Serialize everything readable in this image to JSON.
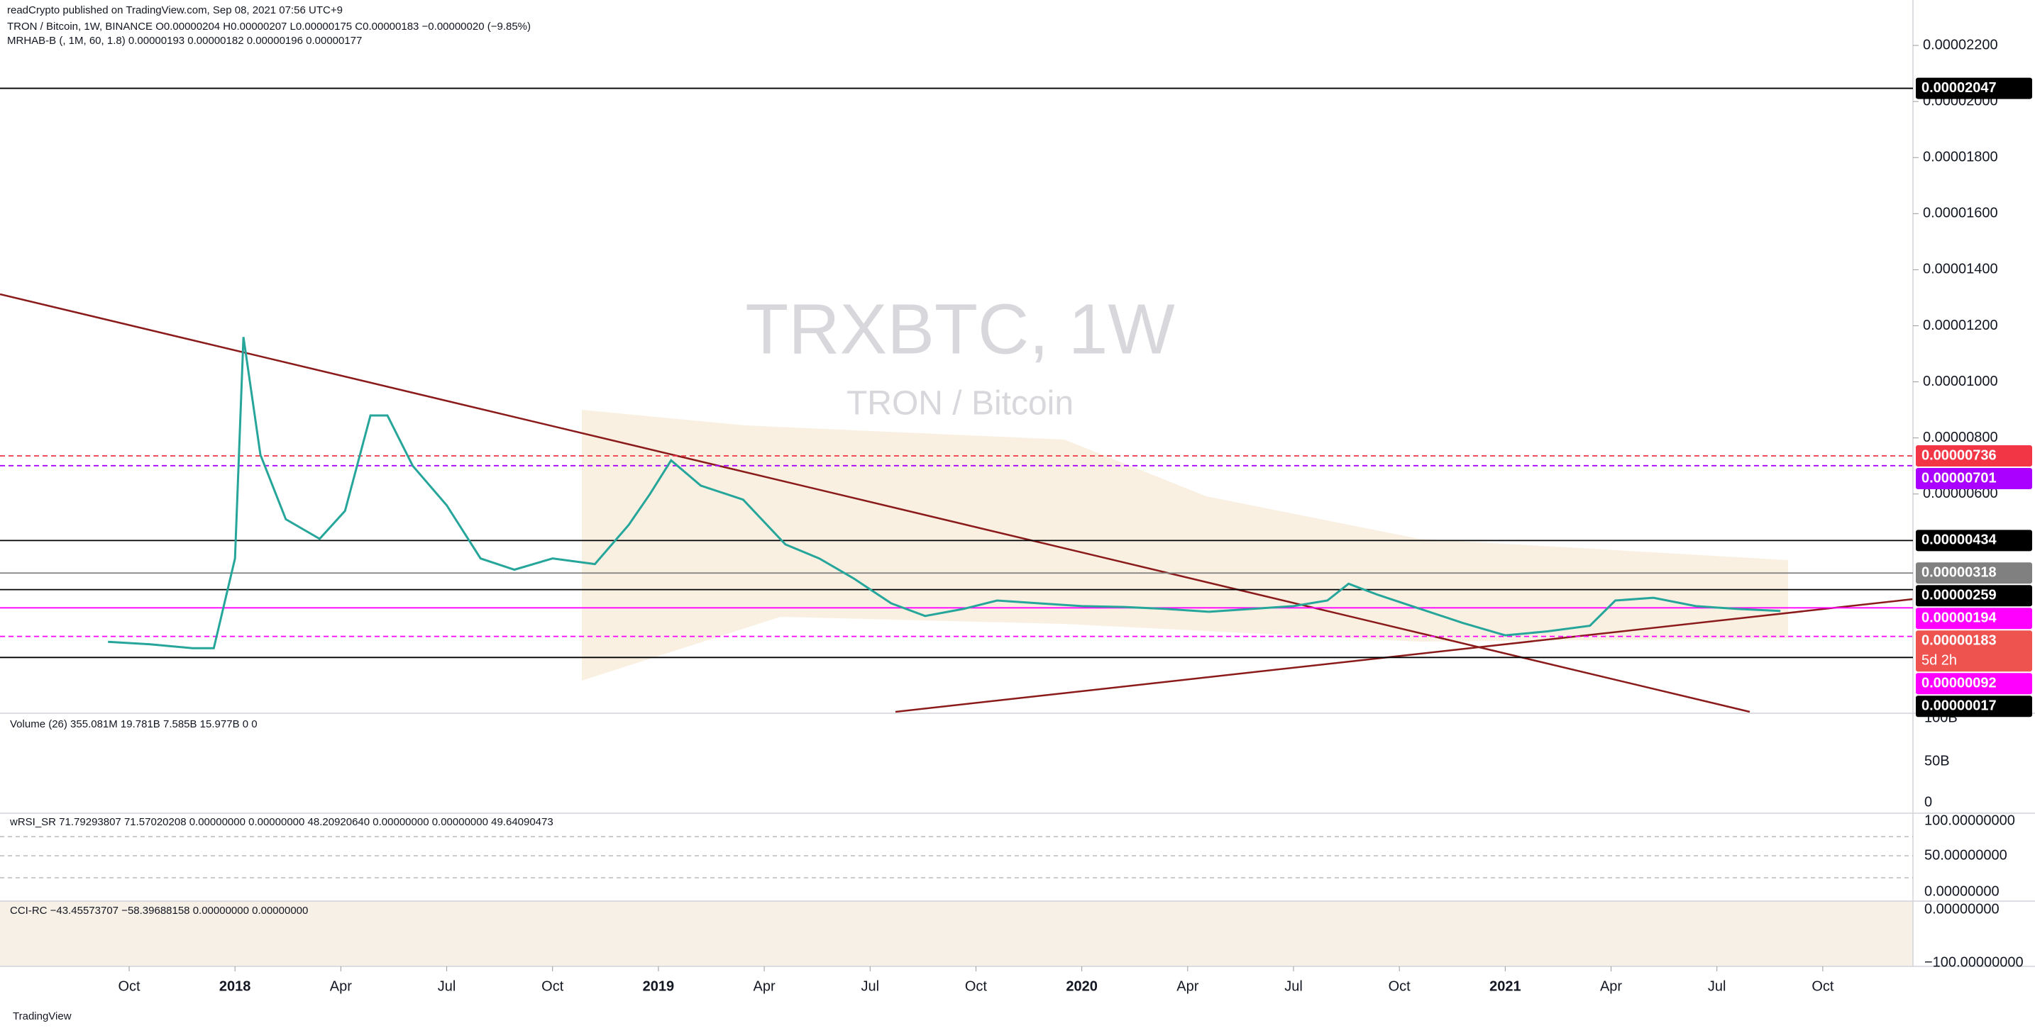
{
  "header": {
    "publisher": "readCrypto published on TradingView.com, Sep 08, 2021 07:56 UTC+9",
    "legend": "TRON / Bitcoin, 1W, BINANCE  O0.00000204  H0.00000207  L0.00000175  C0.00000183  −0.00000020 (−9.85%)",
    "indicator": "MRHAB-B (, 1M, 60, 1.8)  0.00000193  0.00000182  0.00000196  0.00000177",
    "watermark_symbol": "TRXBTC, 1W",
    "watermark_name": "TRON / Bitcoin"
  },
  "chart_data": {
    "type": "line",
    "x": [
      2017.7,
      2017.8,
      2017.9,
      2017.95,
      2018.0,
      2018.02,
      2018.06,
      2018.12,
      2018.2,
      2018.26,
      2018.32,
      2018.36,
      2018.42,
      2018.5,
      2018.58,
      2018.66,
      2018.75,
      2018.85,
      2018.93,
      2018.98,
      2019.03,
      2019.1,
      2019.2,
      2019.3,
      2019.38,
      2019.46,
      2019.55,
      2019.63,
      2019.72,
      2019.8,
      2019.9,
      2020.0,
      2020.1,
      2020.2,
      2020.3,
      2020.4,
      2020.5,
      2020.58,
      2020.63,
      2020.7,
      2020.8,
      2020.9,
      2021.0,
      2021.1,
      2021.2,
      2021.26,
      2021.35,
      2021.45,
      2021.55,
      2021.65
    ],
    "series": [
      {
        "name": "TRXBTC",
        "color": "#26a69a",
        "values": [
          7.3e-07,
          6.4e-07,
          5e-07,
          5e-07,
          3.7e-06,
          1.16e-05,
          7.4e-06,
          5.1e-06,
          4.4e-06,
          5.4e-06,
          8.8e-06,
          8.8e-06,
          7e-06,
          5.6e-06,
          3.7e-06,
          3.3e-06,
          3.7e-06,
          3.5e-06,
          4.9e-06,
          6e-06,
          7.2e-06,
          6.3e-06,
          5.8e-06,
          4.2e-06,
          3.7e-06,
          3e-06,
          2.1e-06,
          1.65e-06,
          1.9e-06,
          2.2e-06,
          2.1e-06,
          2e-06,
          1.97e-06,
          1.9e-06,
          1.8e-06,
          1.9e-06,
          2e-06,
          2.2e-06,
          2.8e-06,
          2.4e-06,
          1.9e-06,
          1.4e-06,
          9.6e-07,
          1.1e-06,
          1.3e-06,
          2.2e-06,
          2.3e-06,
          2e-06,
          1.9e-06,
          1.83e-06
        ]
      }
    ],
    "xlim": [
      2017.445,
      2021.963
    ],
    "xticks": [
      {
        "value": 2017.75,
        "label": "Oct"
      },
      2018,
      {
        "value": 2018.25,
        "label": "Apr"
      },
      {
        "value": 2018.5,
        "label": "Jul"
      },
      {
        "value": 2018.75,
        "label": "Oct"
      },
      2019,
      {
        "value": 2019.25,
        "label": "Apr"
      },
      {
        "value": 2019.5,
        "label": "Jul"
      },
      {
        "value": 2019.75,
        "label": "Oct"
      },
      2020,
      {
        "value": 2020.25,
        "label": "Apr"
      },
      {
        "value": 2020.5,
        "label": "Jul"
      },
      {
        "value": 2020.75,
        "label": "Oct"
      },
      2021,
      {
        "value": 2021.25,
        "label": "Apr"
      },
      {
        "value": 2021.5,
        "label": "Jul"
      },
      {
        "value": 2021.75,
        "label": "Oct"
      }
    ],
    "ylim": [
      -1.82e-06,
      2.362e-05
    ],
    "yticks": [
      {
        "value": 2.2e-05,
        "label": "0.00002200"
      },
      {
        "value": 2e-05,
        "label": "0.00002000"
      },
      {
        "value": 1.8e-05,
        "label": "0.00001800"
      },
      {
        "value": 1.6e-05,
        "label": "0.00001600"
      },
      {
        "value": 1.4e-05,
        "label": "0.00001400"
      },
      {
        "value": 1.2e-05,
        "label": "0.00001200"
      },
      {
        "value": 1e-05,
        "label": "0.00001000"
      },
      {
        "value": 8e-06,
        "label": "0.00000800"
      },
      {
        "value": 6e-06,
        "label": "0.00000600"
      }
    ],
    "levels": [
      {
        "value": 2.047e-05,
        "label": "0.00002047",
        "color": "#000000",
        "line": "solid"
      },
      {
        "value": 7.36e-06,
        "label": "0.00000736",
        "color": "#f23645",
        "line": "dashed"
      },
      {
        "value": 7.01e-06,
        "label": "0.00000701",
        "color": "#aa00ff",
        "line": "dashed"
      },
      {
        "value": 4.34e-06,
        "label": "0.00000434",
        "color": "#000000",
        "line": "solid"
      },
      {
        "value": 3.18e-06,
        "label": "0.00000318",
        "color": "#808080",
        "line": "solid"
      },
      {
        "value": 2.59e-06,
        "label": "0.00000259",
        "color": "#000000",
        "line": "solid"
      },
      {
        "value": 1.94e-06,
        "label": "0.00000194",
        "color": "#ff00ff",
        "line": "solid"
      },
      {
        "value": 1.83e-06,
        "label": "0.00000183",
        "countdown": "5d 2h",
        "color": "#ef5350",
        "line": "none"
      },
      {
        "value": 9.2e-07,
        "label": "0.00000092",
        "color": "#ff00ff",
        "line": "dashed"
      },
      {
        "value": 1.7e-07,
        "label": "0.00000017",
        "color": "#000000",
        "line": "solid"
      }
    ]
  },
  "panes": {
    "volume": {
      "legend": "Volume (26)  355.081M  19.781B  7.585B  15.977B  0  0",
      "axis_labels": [
        "100B",
        "50B",
        "0"
      ]
    },
    "rsi": {
      "legend": "wRSI_SR  71.79293807  71.57020208  0.00000000  0.00000000  48.20920640  0.00000000  0.00000000  49.64090473",
      "axis_labels": [
        "100.00000000",
        "50.00000000",
        "0.00000000"
      ]
    },
    "cci": {
      "legend": "CCI-RC  −43.45573707  −58.39688158  0.00000000  0.00000000",
      "axis_labels": [
        "0.00000000",
        "−100.00000000"
      ]
    }
  },
  "footer": {
    "brand": "TradingView"
  }
}
